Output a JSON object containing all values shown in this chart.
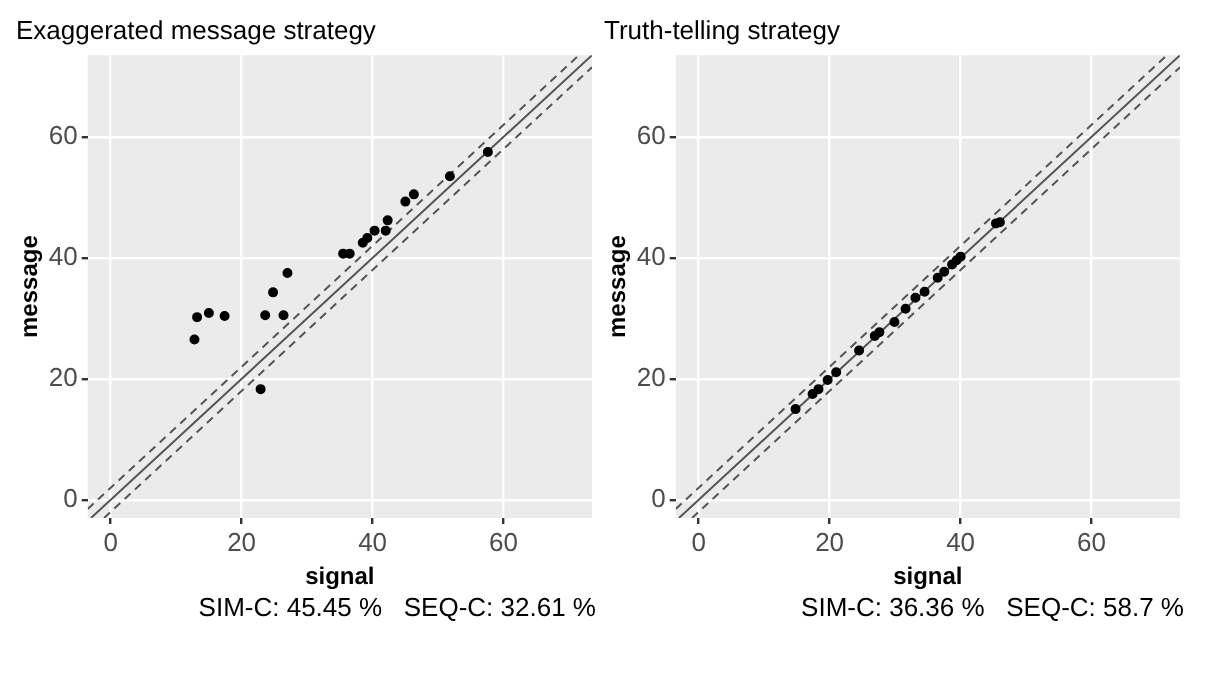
{
  "chart_data": [
    {
      "type": "scatter",
      "title": "Exaggerated message strategy",
      "xlabel": "signal",
      "ylabel": "message",
      "xlim": [
        -3.5,
        73.5
      ],
      "ylim": [
        -3,
        73.5
      ],
      "xticks": [
        0,
        20,
        40,
        60
      ],
      "yticks": [
        0,
        20,
        40,
        60
      ],
      "grid": true,
      "legend": false,
      "annotations": [
        "SIM-C: 45.45 %   SEQ-C: 32.61 %"
      ],
      "series": [
        {
          "color": "#000000",
          "marker": "circle",
          "x": [
            12.8,
            13.2,
            15,
            17.4,
            22.9,
            23.6,
            24.8,
            26.4,
            27,
            35.5,
            36.5,
            38.5,
            39.2,
            40.3,
            42,
            42.3,
            45,
            46.3,
            51.8,
            57.6
          ],
          "values": [
            26.5,
            30.2,
            30.9,
            30.4,
            18.3,
            30.5,
            34.3,
            30.5,
            37.5,
            40.7,
            40.7,
            42.5,
            43.3,
            44.5,
            44.5,
            46.2,
            49.3,
            50.5,
            53.5,
            57.5
          ]
        },
        {
          "type": "line",
          "color": "#555555",
          "line_style": "solid",
          "marker": "none",
          "x": [
            -3,
            73.5
          ],
          "values": [
            -3,
            73.5
          ]
        },
        {
          "type": "line",
          "color": "#555555",
          "line_style": "dashed",
          "marker": "none",
          "x": [
            -3.5,
            71.5
          ],
          "values": [
            -1.5,
            73.5
          ]
        },
        {
          "type": "line",
          "color": "#555555",
          "line_style": "dashed",
          "marker": "none",
          "x": [
            -1,
            73.5
          ],
          "values": [
            -3,
            71.5
          ]
        }
      ]
    },
    {
      "type": "scatter",
      "title": "Truth-telling strategy",
      "xlabel": "signal",
      "ylabel": "message",
      "xlim": [
        -3.5,
        73.5
      ],
      "ylim": [
        -3,
        73.5
      ],
      "xticks": [
        0,
        20,
        40,
        60
      ],
      "yticks": [
        0,
        20,
        40,
        60
      ],
      "grid": true,
      "legend": false,
      "annotations": [
        "SIM-C: 36.36 %   SEQ-C: 58.7 %"
      ],
      "series": [
        {
          "color": "#000000",
          "marker": "circle",
          "x": [
            14.8,
            17.4,
            18.3,
            19.7,
            21,
            24.5,
            26.9,
            27.6,
            29.9,
            31.6,
            33.1,
            34.5,
            36.5,
            37.5,
            38.7,
            39.4,
            40,
            45.4,
            46
          ],
          "values": [
            15,
            17.5,
            18.3,
            19.8,
            21.1,
            24.7,
            27.1,
            27.7,
            29.4,
            31.6,
            33.4,
            34.4,
            36.7,
            37.7,
            38.9,
            39.6,
            40.2,
            45.7,
            45.9
          ]
        },
        {
          "type": "line",
          "color": "#555555",
          "line_style": "solid",
          "marker": "none",
          "x": [
            -3,
            73.5
          ],
          "values": [
            -3,
            73.5
          ]
        },
        {
          "type": "line",
          "color": "#555555",
          "line_style": "dashed",
          "marker": "none",
          "x": [
            -3.5,
            71.5
          ],
          "values": [
            -1.5,
            73.5
          ]
        },
        {
          "type": "line",
          "color": "#555555",
          "line_style": "dashed",
          "marker": "none",
          "x": [
            -1,
            73.5
          ],
          "values": [
            -3,
            71.5
          ]
        }
      ]
    }
  ]
}
